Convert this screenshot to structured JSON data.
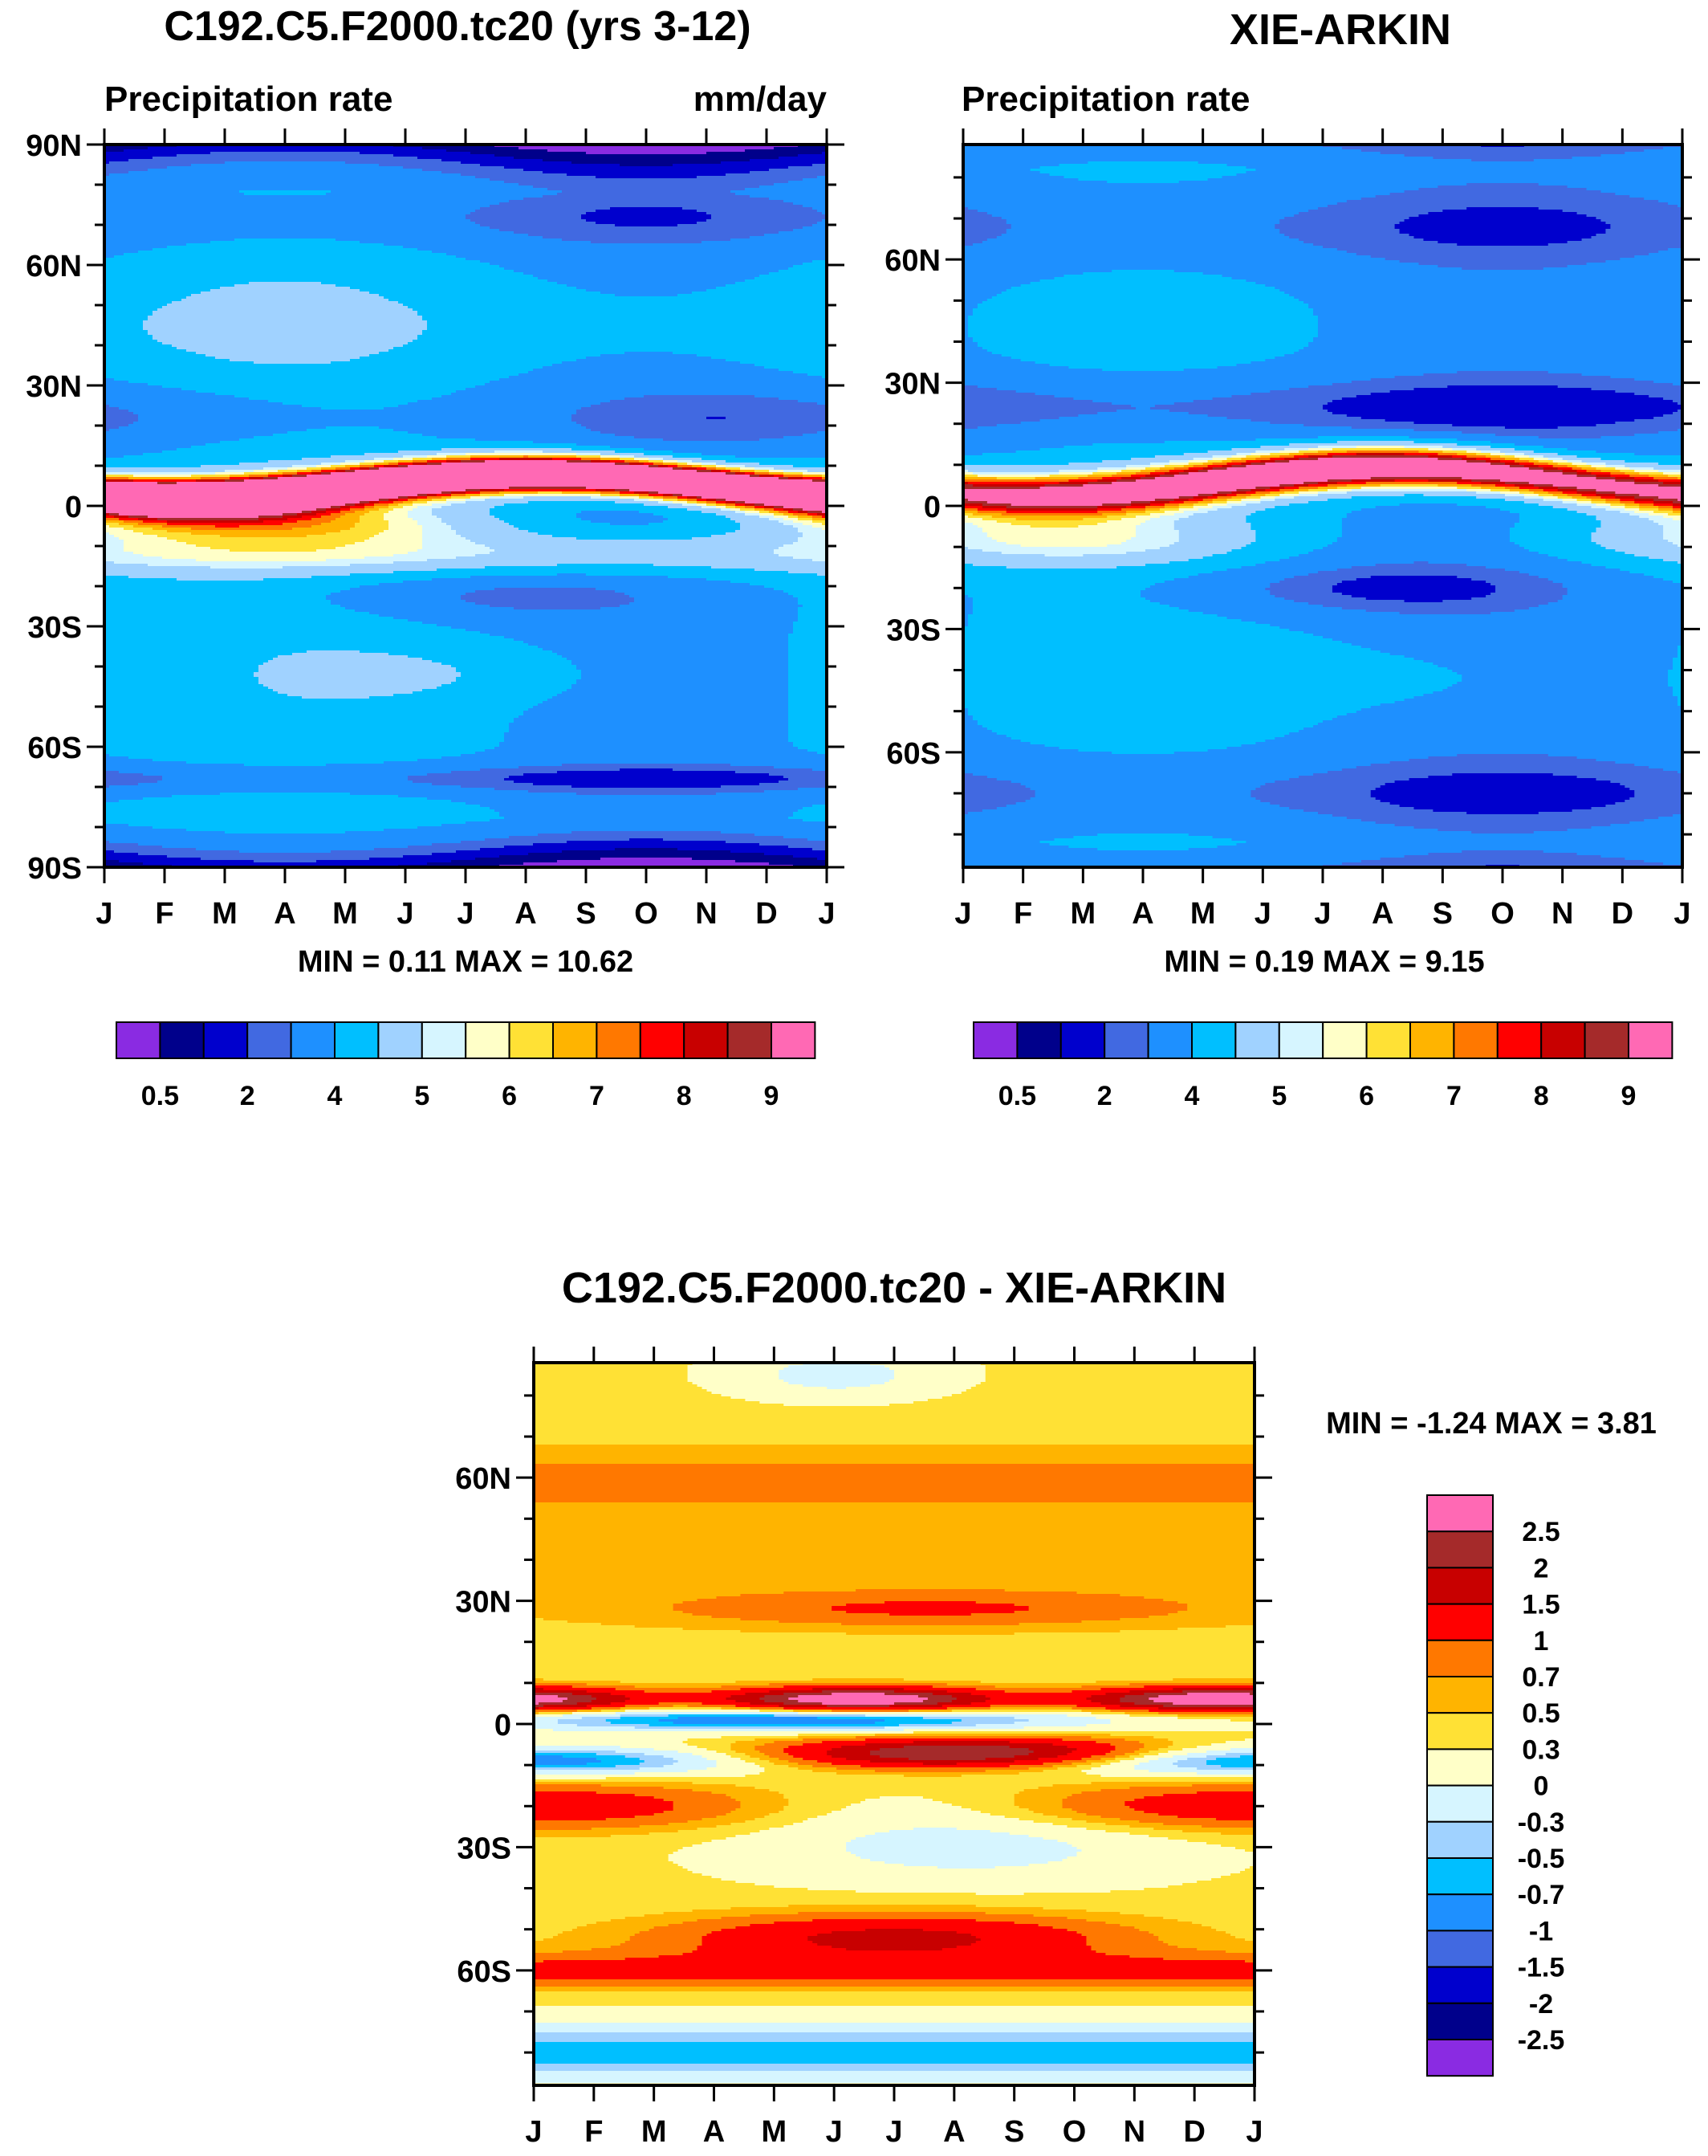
{
  "chart_data": [
    {
      "type": "heatmap",
      "title": "C192.C5.F2000.tc20 (yrs 3-12)",
      "subtitle_left": "Precipitation rate",
      "subtitle_right": "mm/day",
      "x_months": [
        "J",
        "F",
        "M",
        "A",
        "M",
        "J",
        "J",
        "A",
        "S",
        "O",
        "N",
        "D",
        "J"
      ],
      "y_ticks": [
        "90N",
        "60N",
        "30N",
        "0",
        "30S",
        "60S",
        "90S"
      ],
      "ylim": [
        -90,
        90
      ],
      "stats": "MIN =   0.11 MAX =  10.62",
      "colorbar_labels": [
        "0.5",
        "2",
        "4",
        "5",
        "6",
        "7",
        "8",
        "9"
      ],
      "max_level": 14
    },
    {
      "type": "heatmap",
      "title": "XIE-ARKIN",
      "subtitle_left": "Precipitation rate",
      "subtitle_right": "",
      "x_months": [
        "J",
        "F",
        "M",
        "A",
        "M",
        "J",
        "J",
        "A",
        "S",
        "O",
        "N",
        "D",
        "J"
      ],
      "y_ticks": [
        "60N",
        "30N",
        "0",
        "30S",
        "60S"
      ],
      "ylim": [
        -88,
        88
      ],
      "stats": "MIN =   0.19 MAX =   9.15",
      "colorbar_labels": [
        "0.5",
        "2",
        "4",
        "5",
        "6",
        "7",
        "8",
        "9"
      ],
      "max_level": 12
    },
    {
      "type": "heatmap",
      "title": "C192.C5.F2000.tc20 - XIE-ARKIN",
      "x_months": [
        "J",
        "F",
        "M",
        "A",
        "M",
        "J",
        "J",
        "A",
        "S",
        "O",
        "N",
        "D",
        "J"
      ],
      "y_ticks": [
        "60N",
        "30N",
        "0",
        "30S",
        "60S"
      ],
      "ylim": [
        -88,
        88
      ],
      "stats": "MIN =  -1.24 MAX =   3.81",
      "colorbar_labels": [
        "2.5",
        "2",
        "1.5",
        "1",
        "0.7",
        "0.5",
        "0.3",
        "0",
        "-0.3",
        "-0.5",
        "-0.7",
        "-1",
        "-1.5",
        "-2",
        "-2.5"
      ]
    }
  ],
  "palette": [
    "#8a2be2",
    "#00008b",
    "#0000cd",
    "#4169e1",
    "#1e90ff",
    "#00bfff",
    "#a0d2ff",
    "#d6f5ff",
    "#ffffc8",
    "#ffe135",
    "#ffb400",
    "#ff7800",
    "#ff0000",
    "#c80000",
    "#a52a2a",
    "#ff69b4"
  ]
}
